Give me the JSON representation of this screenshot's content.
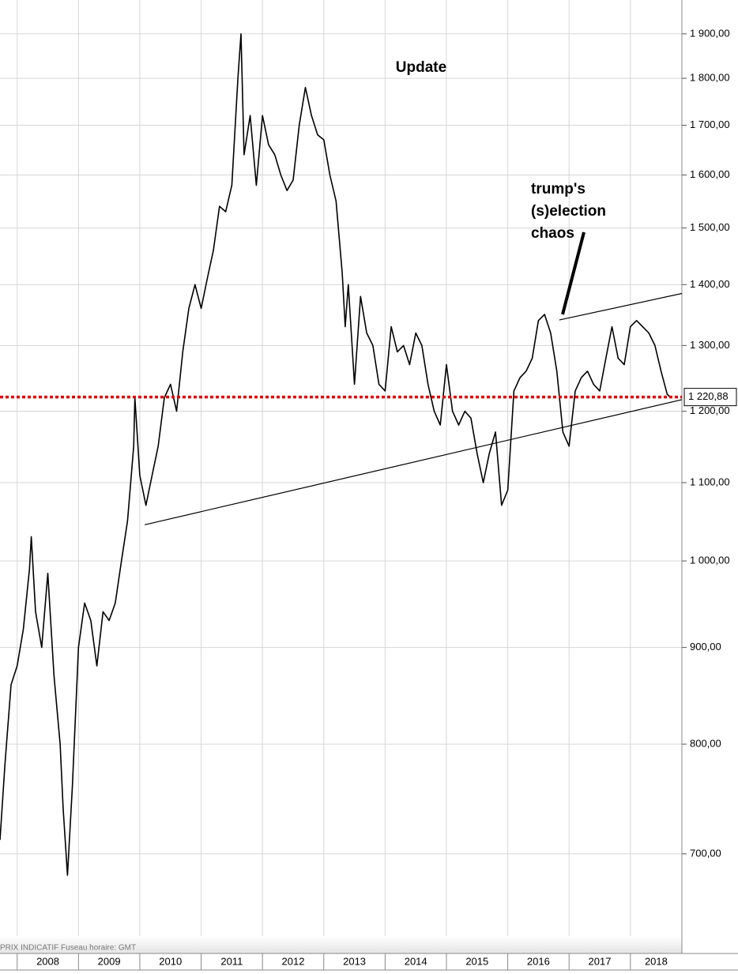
{
  "chart_data": {
    "type": "line",
    "title": "Update",
    "annotation": [
      "trump's",
      "(s)election",
      "chaos"
    ],
    "footer": "PRIX INDICATIF   Fuseau horaire: GMT",
    "log_scale": true,
    "grid": true,
    "xlim": [
      2007.72,
      2018.84
    ],
    "xticks": [
      2008,
      2009,
      2010,
      2011,
      2012,
      2013,
      2014,
      2015,
      2016,
      2017,
      2018
    ],
    "x_labels": [
      "2008",
      "2009",
      "2010",
      "2011",
      "2012",
      "2013",
      "2014",
      "2015",
      "2016",
      "2017",
      "2018"
    ],
    "ylim": [
      620,
      1980
    ],
    "yticks": [
      {
        "value": 700,
        "label": "700,00"
      },
      {
        "value": 800,
        "label": "800,00"
      },
      {
        "value": 900,
        "label": "900,00"
      },
      {
        "value": 1000,
        "label": "1 000,00"
      },
      {
        "value": 1100,
        "label": "1 100,00"
      },
      {
        "value": 1200,
        "label": "1 200,00"
      },
      {
        "value": 1300,
        "label": "1 300,00"
      },
      {
        "value": 1400,
        "label": "1 400,00"
      },
      {
        "value": 1500,
        "label": "1 500,00"
      },
      {
        "value": 1600,
        "label": "1 600,00"
      },
      {
        "value": 1700,
        "label": "1 700,00"
      },
      {
        "value": 1800,
        "label": "1 800,00"
      },
      {
        "value": 1900,
        "label": "1 900,00"
      }
    ],
    "series": [
      {
        "color": "#000000",
        "x": [
          2007.72,
          2007.8,
          2007.9,
          2008.0,
          2008.1,
          2008.2,
          2008.23,
          2008.3,
          2008.4,
          2008.5,
          2008.6,
          2008.7,
          2008.75,
          2008.82,
          2008.9,
          2009.0,
          2009.1,
          2009.2,
          2009.3,
          2009.4,
          2009.5,
          2009.6,
          2009.7,
          2009.8,
          2009.9,
          2009.92,
          2010.0,
          2010.1,
          2010.2,
          2010.3,
          2010.4,
          2010.5,
          2010.6,
          2010.7,
          2010.8,
          2010.9,
          2011.0,
          2011.1,
          2011.2,
          2011.3,
          2011.4,
          2011.5,
          2011.6,
          2011.65,
          2011.7,
          2011.8,
          2011.9,
          2012.0,
          2012.1,
          2012.2,
          2012.3,
          2012.4,
          2012.5,
          2012.6,
          2012.7,
          2012.8,
          2012.9,
          2013.0,
          2013.1,
          2013.2,
          2013.3,
          2013.35,
          2013.4,
          2013.5,
          2013.6,
          2013.7,
          2013.8,
          2013.9,
          2014.0,
          2014.1,
          2014.2,
          2014.3,
          2014.4,
          2014.5,
          2014.6,
          2014.7,
          2014.8,
          2014.9,
          2015.0,
          2015.1,
          2015.2,
          2015.3,
          2015.4,
          2015.5,
          2015.6,
          2015.7,
          2015.8,
          2015.9,
          2016.0,
          2016.1,
          2016.2,
          2016.3,
          2016.4,
          2016.5,
          2016.6,
          2016.7,
          2016.8,
          2016.9,
          2017.0,
          2017.1,
          2017.2,
          2017.3,
          2017.4,
          2017.5,
          2017.6,
          2017.7,
          2017.8,
          2017.9,
          2018.0,
          2018.1,
          2018.2,
          2018.3,
          2018.4,
          2018.5,
          2018.6,
          2018.65
        ],
        "values": [
          712,
          780,
          860,
          880,
          920,
          990,
          1030,
          940,
          900,
          985,
          870,
          800,
          740,
          682,
          760,
          900,
          950,
          930,
          880,
          940,
          930,
          950,
          1000,
          1050,
          1150,
          1220,
          1110,
          1070,
          1110,
          1150,
          1220,
          1240,
          1200,
          1290,
          1360,
          1400,
          1360,
          1410,
          1460,
          1540,
          1530,
          1580,
          1800,
          1900,
          1640,
          1720,
          1580,
          1720,
          1660,
          1640,
          1600,
          1570,
          1590,
          1700,
          1780,
          1720,
          1680,
          1670,
          1600,
          1550,
          1420,
          1330,
          1400,
          1240,
          1380,
          1320,
          1300,
          1240,
          1230,
          1330,
          1290,
          1300,
          1270,
          1320,
          1300,
          1240,
          1200,
          1180,
          1270,
          1200,
          1180,
          1200,
          1190,
          1140,
          1100,
          1140,
          1170,
          1070,
          1090,
          1230,
          1250,
          1260,
          1280,
          1340,
          1350,
          1320,
          1260,
          1170,
          1150,
          1230,
          1250,
          1260,
          1240,
          1230,
          1280,
          1330,
          1280,
          1270,
          1330,
          1340,
          1330,
          1320,
          1300,
          1260,
          1225,
          1220.88
        ]
      }
    ],
    "reference_line": {
      "value": 1220.88,
      "label": "1 220,88",
      "color": "#e00000"
    },
    "trendlines": [
      {
        "x": [
          2010.08,
          2018.84
        ],
        "y": [
          1045,
          1217
        ]
      },
      {
        "x": [
          2016.84,
          2018.84
        ],
        "y": [
          1341,
          1385
        ]
      }
    ]
  }
}
